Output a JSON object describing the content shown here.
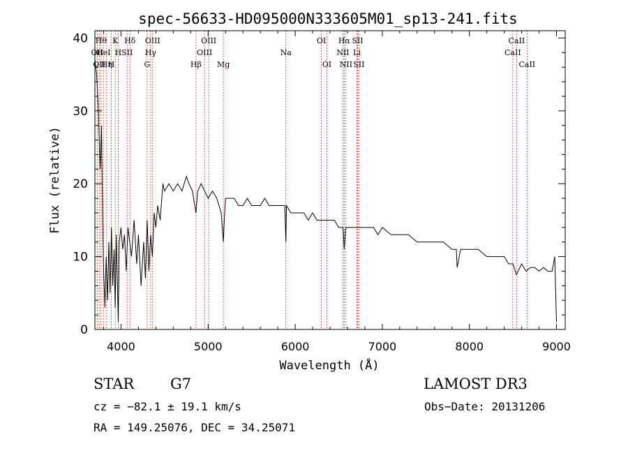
{
  "chart_data": {
    "type": "line",
    "title": "spec-56633-HD095000N333605M01_sp13-241.fits",
    "xlabel": "Wavelength (Å)",
    "ylabel": "Flux (relative)",
    "xlim": [
      3700,
      9100
    ],
    "ylim": [
      0,
      41
    ],
    "xticks": [
      4000,
      5000,
      6000,
      7000,
      8000,
      9000
    ],
    "yticks": [
      0,
      10,
      20,
      30,
      40
    ],
    "grid": false,
    "series": [
      {
        "name": "flux",
        "x": [
          3700,
          3720,
          3740,
          3760,
          3775,
          3790,
          3800,
          3815,
          3830,
          3845,
          3860,
          3875,
          3890,
          3905,
          3920,
          3933,
          3945,
          3960,
          3968,
          3980,
          4000,
          4020,
          4040,
          4060,
          4080,
          4100,
          4120,
          4150,
          4180,
          4200,
          4230,
          4260,
          4280,
          4300,
          4320,
          4340,
          4360,
          4380,
          4400,
          4420,
          4450,
          4480,
          4500,
          4550,
          4600,
          4650,
          4700,
          4750,
          4780,
          4820,
          4860,
          4880,
          4920,
          4960,
          5000,
          5050,
          5100,
          5150,
          5175,
          5185,
          5200,
          5250,
          5300,
          5350,
          5400,
          5450,
          5500,
          5550,
          5600,
          5650,
          5700,
          5750,
          5800,
          5850,
          5880,
          5893,
          5900,
          5950,
          6000,
          6050,
          6100,
          6150,
          6200,
          6250,
          6300,
          6350,
          6400,
          6450,
          6500,
          6550,
          6563,
          6580,
          6600,
          6650,
          6700,
          6750,
          6800,
          6850,
          6900,
          6950,
          7000,
          7100,
          7200,
          7300,
          7400,
          7500,
          7600,
          7700,
          7800,
          7850,
          7860,
          7900,
          8000,
          8100,
          8200,
          8300,
          8400,
          8450,
          8500,
          8540,
          8600,
          8650,
          8700,
          8750,
          8800,
          8850,
          8900,
          8950,
          8980,
          9000
        ],
        "y": [
          37,
          35,
          30,
          22,
          28,
          15,
          8,
          3,
          10,
          4,
          12,
          5,
          14,
          6,
          11,
          3,
          13,
          5,
          1,
          12,
          14,
          11,
          13,
          8,
          14,
          12,
          10,
          15,
          9,
          13,
          6,
          12,
          7,
          15,
          8,
          13,
          10,
          16,
          14,
          17,
          15,
          20,
          19,
          20,
          19,
          20,
          19,
          21,
          20,
          19,
          16,
          19,
          20,
          19,
          18,
          19,
          18,
          16,
          12,
          15,
          18,
          18,
          18,
          17,
          17,
          18,
          17,
          17,
          17,
          18,
          17,
          17,
          17,
          17,
          17,
          12,
          17,
          16,
          16,
          16,
          16,
          15,
          16,
          15,
          15,
          15,
          15,
          15,
          14,
          14,
          11,
          14,
          14,
          14,
          14,
          14,
          14,
          14,
          14,
          13,
          14,
          13,
          13,
          13,
          12,
          12,
          12,
          12,
          11,
          11,
          8.5,
          11,
          11,
          11,
          10,
          10,
          10,
          9,
          9,
          7.5,
          9,
          8,
          8.5,
          8.5,
          8,
          8.5,
          8,
          8,
          10,
          1
        ]
      }
    ],
    "spectral_lines": [
      {
        "wl": 3727,
        "label": "OII",
        "row": 2
      },
      {
        "wl": 3750,
        "label": "OII",
        "row": 3
      },
      {
        "wl": 3771,
        "label": "Hθ",
        "row": 1
      },
      {
        "wl": 3798,
        "label": "HeI",
        "row": 2
      },
      {
        "wl": 3835,
        "label": "Hη",
        "row": 3
      },
      {
        "wl": 3889,
        "label": "H",
        "row": 3
      },
      {
        "wl": 3934,
        "label": "K",
        "row": 1
      },
      {
        "wl": 3968,
        "label": "H",
        "row": 2
      },
      {
        "wl": 4070,
        "label": "SII",
        "row": 2
      },
      {
        "wl": 4102,
        "label": "Hδ",
        "row": 1
      },
      {
        "wl": 4300,
        "label": "G",
        "row": 3
      },
      {
        "wl": 4340,
        "label": "Hγ",
        "row": 2
      },
      {
        "wl": 4363,
        "label": "OIII",
        "row": 1
      },
      {
        "wl": 4861,
        "label": "Hβ",
        "row": 3
      },
      {
        "wl": 4959,
        "label": "OIII",
        "row": 2
      },
      {
        "wl": 5007,
        "label": "OIII",
        "row": 1
      },
      {
        "wl": 5175,
        "label": "Mg",
        "row": 3
      },
      {
        "wl": 5893,
        "label": "Na",
        "row": 2
      },
      {
        "wl": 6300,
        "label": "OI",
        "row": 1
      },
      {
        "wl": 6364,
        "label": "OI",
        "row": 3
      },
      {
        "wl": 6548,
        "label": "NII",
        "row": 2
      },
      {
        "wl": 6563,
        "label": "Hα",
        "row": 1
      },
      {
        "wl": 6583,
        "label": "NII",
        "row": 3
      },
      {
        "wl": 6708,
        "label": "Li",
        "row": 2
      },
      {
        "wl": 6716,
        "label": "SII",
        "row": 1
      },
      {
        "wl": 6731,
        "label": "SII",
        "row": 3
      },
      {
        "wl": 8498,
        "label": "CaII",
        "row": 2
      },
      {
        "wl": 8542,
        "label": "CaII",
        "row": 1
      },
      {
        "wl": 8662,
        "label": "CaII",
        "row": 3
      }
    ]
  },
  "info": {
    "object_class": "STAR",
    "subclass": "G7",
    "survey": "LAMOST DR3",
    "cz": "cz = −82.1 ± 19.1 km/s",
    "obs_date": "Obs−Date: 20131206",
    "coords": "RA = 149.25076, DEC =  34.25071"
  },
  "colors": {
    "line": "#000000",
    "marker": "#c0392b",
    "background": "#ffffff"
  }
}
